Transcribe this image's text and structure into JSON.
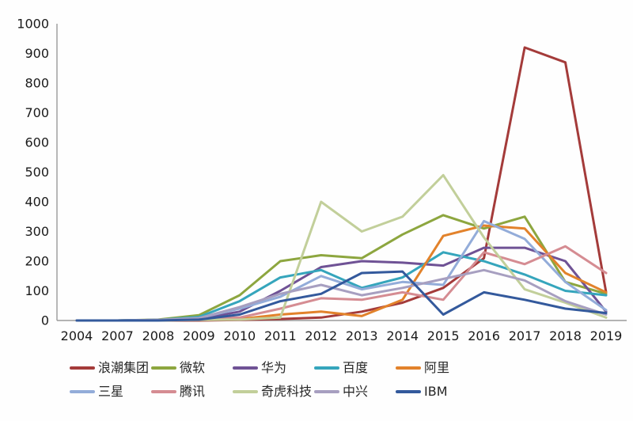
{
  "chart_data": {
    "type": "line",
    "title": "",
    "xlabel": "",
    "ylabel": "",
    "categories": [
      "2004",
      "2007",
      "2008",
      "2009",
      "2010",
      "2011",
      "2012",
      "2013",
      "2014",
      "2015",
      "2016",
      "2017",
      "2018",
      "2019"
    ],
    "ylim": [
      0,
      1000
    ],
    "ytick_step": 100,
    "grid": false,
    "legend_position": "bottom",
    "axis_color": "#9a9a9a",
    "tick_label_color": "#1a1a1a",
    "series": [
      {
        "name": "浪潮集团",
        "color": "#a43b3a",
        "values": [
          0,
          0,
          0,
          0,
          2,
          5,
          10,
          30,
          60,
          110,
          210,
          920,
          870,
          95
        ]
      },
      {
        "name": "微软",
        "color": "#8da63f",
        "values": [
          0,
          0,
          3,
          18,
          85,
          200,
          220,
          210,
          290,
          355,
          310,
          350,
          130,
          90
        ]
      },
      {
        "name": "华为",
        "color": "#6f5295",
        "values": [
          0,
          0,
          2,
          5,
          30,
          100,
          180,
          200,
          195,
          185,
          245,
          245,
          200,
          30
        ]
      },
      {
        "name": "百度",
        "color": "#35a5bc",
        "values": [
          0,
          0,
          2,
          12,
          65,
          145,
          170,
          110,
          145,
          230,
          200,
          155,
          100,
          85
        ]
      },
      {
        "name": "阿里",
        "color": "#e2822b",
        "values": [
          0,
          0,
          0,
          3,
          5,
          20,
          30,
          15,
          70,
          285,
          320,
          310,
          160,
          95
        ]
      },
      {
        "name": "三星",
        "color": "#93acd9",
        "values": [
          0,
          0,
          2,
          8,
          40,
          80,
          150,
          105,
          130,
          120,
          335,
          275,
          130,
          35
        ]
      },
      {
        "name": "腾讯",
        "color": "#d58c92",
        "values": [
          0,
          0,
          0,
          5,
          10,
          40,
          75,
          70,
          95,
          70,
          230,
          190,
          250,
          160
        ]
      },
      {
        "name": "奇虎科技",
        "color": "#c2cf9a",
        "values": [
          0,
          0,
          0,
          2,
          3,
          10,
          400,
          300,
          350,
          490,
          280,
          105,
          60,
          10
        ]
      },
      {
        "name": "中兴",
        "color": "#a79fc0",
        "values": [
          0,
          0,
          2,
          8,
          45,
          90,
          120,
          85,
          110,
          140,
          170,
          135,
          65,
          20
        ]
      },
      {
        "name": "IBM",
        "color": "#33599c",
        "values": [
          0,
          0,
          0,
          3,
          20,
          65,
          90,
          160,
          165,
          20,
          95,
          70,
          40,
          25
        ]
      }
    ]
  }
}
